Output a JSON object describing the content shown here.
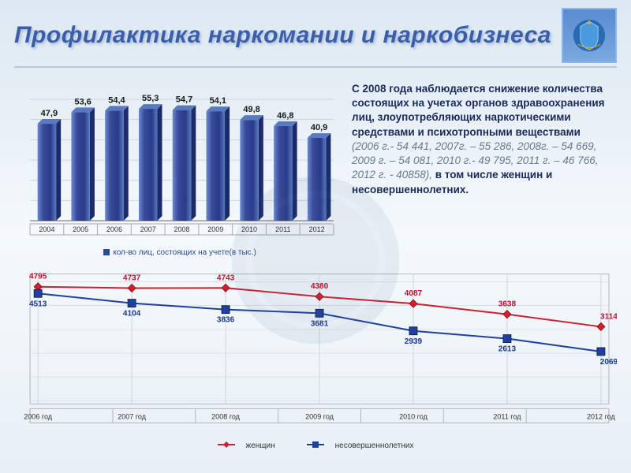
{
  "title": "Профилактика  наркомании и наркобизнеса",
  "emblem_bg": "#6a9ad8",
  "bar_chart": {
    "type": "bar",
    "categories": [
      "2004",
      "2005",
      "2006",
      "2007",
      "2008",
      "2009",
      "2010",
      "2011",
      "2012"
    ],
    "values": [
      47.9,
      53.6,
      54.4,
      55.3,
      54.7,
      54.1,
      49.8,
      46.8,
      40.9
    ],
    "value_labels": [
      "47,9",
      "53,6",
      "54,4",
      "55,3",
      "54,7",
      "54,1",
      "49,8",
      "46,8",
      "40,9"
    ],
    "ylim": [
      0,
      60
    ],
    "bar_color_grad_top": "#6a8ad0",
    "bar_color_grad_mid": "#2a3a8a",
    "bar_color_side": "#1a2a6a",
    "bar_color_cap": "#5a7ac0",
    "grid_color": "#cfd6dc",
    "label_fontsize": 11,
    "tick_fontsize": 9,
    "legend_label": "кол-во лиц, состоящих на учете(в тыс.)"
  },
  "description": {
    "bold1": "С 2008 года наблюдается снижение количества состоящих на  учетах органов здравоохранения лиц, злоупотребляющих наркотическими средствами и психотропными веществами",
    "gray": " (2006 г.- 54 441, 2007г. – 55 286, 2008г. – 54 669, 2009 г. – 54 081, 2010 г.- 49 795, 2011 г. – 46 766, 2012 г. - 40858), ",
    "bold2": "в том числе женщин и несовершеннолетних."
  },
  "line_chart": {
    "type": "line",
    "categories": [
      "2006 год",
      "2007 год",
      "2008 год",
      "2009 год",
      "2010 год",
      "2011 год",
      "2012 год"
    ],
    "series": [
      {
        "name": "женщин",
        "color": "#d02030",
        "marker": "diamond",
        "values": [
          4795,
          4737,
          4743,
          4380,
          4087,
          3638,
          3114
        ]
      },
      {
        "name": "несовершеннолетних",
        "color": "#2040a0",
        "marker": "square",
        "values": [
          4513,
          4104,
          3836,
          3681,
          2939,
          2613,
          2069
        ]
      }
    ],
    "ylim": [
      0,
      5200
    ],
    "grid_color": "#d0d6dc",
    "tick_fontsize": 9,
    "label_fontsize": 10,
    "line_width": 2,
    "marker_size": 5
  }
}
